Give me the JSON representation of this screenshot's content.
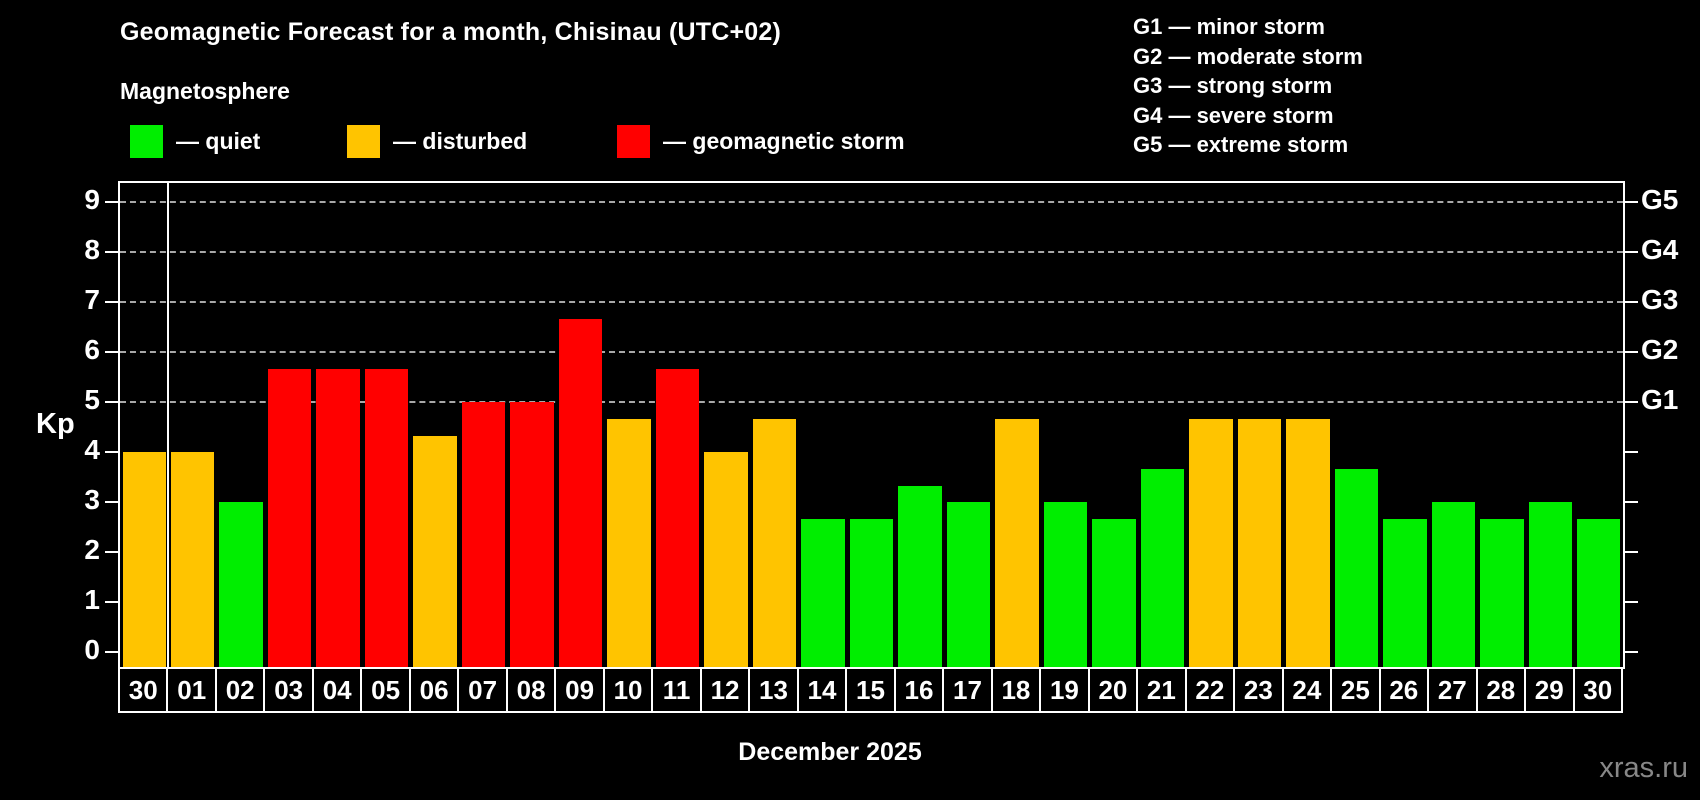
{
  "header": {
    "title": "Geomagnetic Forecast for a month, Chisinau (UTC+02)",
    "subtitle": "Magnetosphere"
  },
  "legend": {
    "items": [
      {
        "key": "quiet",
        "label": "— quiet"
      },
      {
        "key": "disturbed",
        "label": "— disturbed"
      },
      {
        "key": "storm",
        "label": "— geomagnetic storm"
      }
    ]
  },
  "g_scale_legend": {
    "lines": [
      "G1 — minor storm",
      "G2 — moderate storm",
      "G3 — strong storm",
      "G4 — severe storm",
      "G5 — extreme storm"
    ]
  },
  "axis": {
    "y_label": "Kp",
    "y_ticks": [
      0,
      1,
      2,
      3,
      4,
      5,
      6,
      7,
      8,
      9
    ],
    "right_axis_labels": [
      {
        "label": "G1",
        "kp": 5
      },
      {
        "label": "G2",
        "kp": 6
      },
      {
        "label": "G3",
        "kp": 7
      },
      {
        "label": "G4",
        "kp": 8
      },
      {
        "label": "G5",
        "kp": 9
      }
    ]
  },
  "footer": {
    "month_label": "December 2025",
    "watermark": "xras.ru"
  },
  "colors": {
    "quiet": "#00ee00",
    "disturbed": "#ffc400",
    "storm": "#ff0000",
    "grid": "#a8a8a8",
    "axis": "#ffffff",
    "background": "#000000",
    "watermark": "#878787"
  },
  "chart_data": {
    "type": "bar",
    "title": "Geomagnetic Forecast for a month, Chisinau (UTC+02)",
    "subtitle": "Magnetosphere",
    "xlabel": "December 2025",
    "ylabel": "Kp",
    "ylim": [
      0,
      9.4
    ],
    "grid": "horizontal dashed lines at Kp 5,6,7,8,9",
    "legend_position": "top-left",
    "right_axis": "G1=Kp5, G2=Kp6, G3=Kp7, G4=Kp8, G5=Kp9",
    "categories": [
      "30",
      "01",
      "02",
      "03",
      "04",
      "05",
      "06",
      "07",
      "08",
      "09",
      "10",
      "11",
      "12",
      "13",
      "14",
      "15",
      "16",
      "17",
      "18",
      "19",
      "20",
      "21",
      "22",
      "23",
      "24",
      "25",
      "26",
      "27",
      "28",
      "29",
      "30"
    ],
    "values": [
      4.0,
      4.0,
      3.0,
      5.67,
      5.67,
      5.67,
      4.33,
      5.0,
      5.0,
      6.67,
      4.67,
      5.67,
      4.0,
      4.67,
      2.67,
      2.67,
      3.33,
      3.0,
      4.67,
      3.0,
      2.67,
      3.67,
      4.67,
      4.67,
      4.67,
      3.67,
      2.67,
      3.0,
      2.67,
      3.0,
      2.67
    ],
    "statuses": [
      "disturbed",
      "disturbed",
      "quiet",
      "storm",
      "storm",
      "storm",
      "disturbed",
      "storm",
      "storm",
      "storm",
      "disturbed",
      "storm",
      "disturbed",
      "disturbed",
      "quiet",
      "quiet",
      "quiet",
      "quiet",
      "disturbed",
      "quiet",
      "quiet",
      "quiet",
      "disturbed",
      "disturbed",
      "disturbed",
      "quiet",
      "quiet",
      "quiet",
      "quiet",
      "quiet",
      "quiet"
    ],
    "month_separator_after_index": 0
  }
}
